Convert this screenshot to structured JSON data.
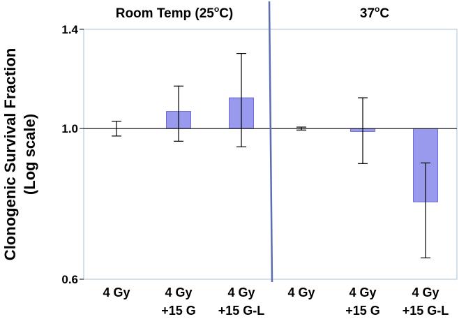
{
  "chart_data": {
    "type": "bar",
    "ylabel_lines": [
      "Clonogenic Survival Fraction",
      "(Log scale)"
    ],
    "yscale": "log",
    "ylim": [
      0.6,
      1.4
    ],
    "yticks": [
      0.6,
      1.0,
      1.4
    ],
    "ytick_labels": [
      "0.6",
      "1.0",
      "1.4"
    ],
    "reference_line": 1.0,
    "panels": [
      {
        "title_main": "Room Temp (25",
        "title_sup": "o",
        "title_end": "C)"
      },
      {
        "title_main": "37",
        "title_sup": "o",
        "title_end": "C"
      }
    ],
    "categories": [
      {
        "line1": "4 Gy",
        "line2": ""
      },
      {
        "line1": "4 Gy",
        "line2": "+15 G"
      },
      {
        "line1": "4 Gy",
        "line2": "+15 G-L"
      },
      {
        "line1": "4 Gy",
        "line2": ""
      },
      {
        "line1": "4 Gy",
        "line2": "+15 G"
      },
      {
        "line1": "4 Gy",
        "line2": "+15 G-L"
      }
    ],
    "values": [
      1.0,
      1.06,
      1.11,
      1.0,
      0.99,
      0.78
    ],
    "error_low": [
      0.975,
      0.958,
      0.94,
      0.995,
      0.888,
      0.645
    ],
    "error_high": [
      1.025,
      1.155,
      1.29,
      1.005,
      1.11,
      0.89
    ],
    "bar_color": "#9999ee",
    "bar_stroke": "#5555cc",
    "divider_color": "#5a6fb3",
    "frame_color": "#a8c0d8",
    "grid": false
  }
}
